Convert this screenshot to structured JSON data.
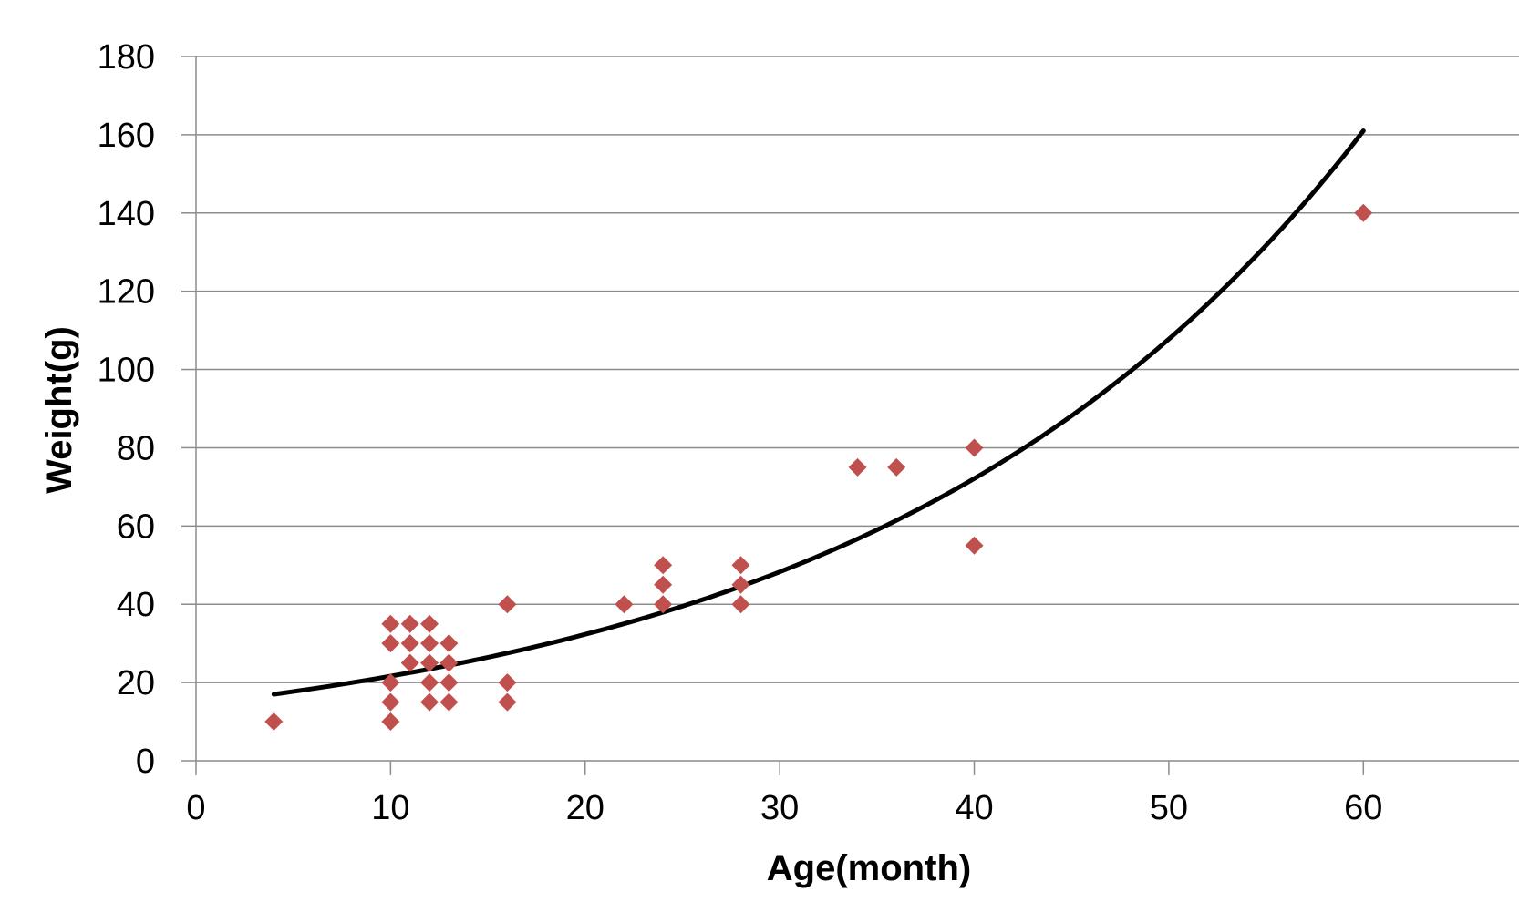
{
  "chart_data": {
    "type": "scatter",
    "title": "",
    "xlabel": "Age(month)",
    "ylabel": "Weight(g)",
    "xlim": [
      0,
      68
    ],
    "ylim": [
      0,
      180
    ],
    "x_ticks": [
      0,
      10,
      20,
      30,
      40,
      50,
      60
    ],
    "y_ticks": [
      0,
      20,
      40,
      60,
      80,
      100,
      120,
      140,
      160,
      180
    ],
    "grid": {
      "horizontal": true,
      "vertical": false
    },
    "legend": "none",
    "series": [
      {
        "type": "scatter",
        "marker": "diamond",
        "color": "#C0504D",
        "points": [
          [
            4,
            10
          ],
          [
            10,
            35
          ],
          [
            10,
            30
          ],
          [
            10,
            20
          ],
          [
            10,
            15
          ],
          [
            10,
            10
          ],
          [
            11,
            35
          ],
          [
            11,
            30
          ],
          [
            11,
            25
          ],
          [
            12,
            35
          ],
          [
            12,
            30
          ],
          [
            12,
            25
          ],
          [
            12,
            20
          ],
          [
            12,
            15
          ],
          [
            13,
            30
          ],
          [
            13,
            25
          ],
          [
            13,
            20
          ],
          [
            13,
            15
          ],
          [
            16,
            40
          ],
          [
            16,
            20
          ],
          [
            16,
            15
          ],
          [
            22,
            40
          ],
          [
            24,
            50
          ],
          [
            24,
            45
          ],
          [
            24,
            40
          ],
          [
            28,
            50
          ],
          [
            28,
            45
          ],
          [
            28,
            40
          ],
          [
            34,
            75
          ],
          [
            36,
            75
          ],
          [
            40,
            80
          ],
          [
            40,
            55
          ],
          [
            60,
            140
          ]
        ]
      },
      {
        "type": "trendline",
        "fit": "exponential",
        "color": "#000000",
        "x_range": [
          4,
          60
        ],
        "points": [
          [
            4,
            17
          ],
          [
            60,
            161
          ]
        ]
      }
    ]
  }
}
